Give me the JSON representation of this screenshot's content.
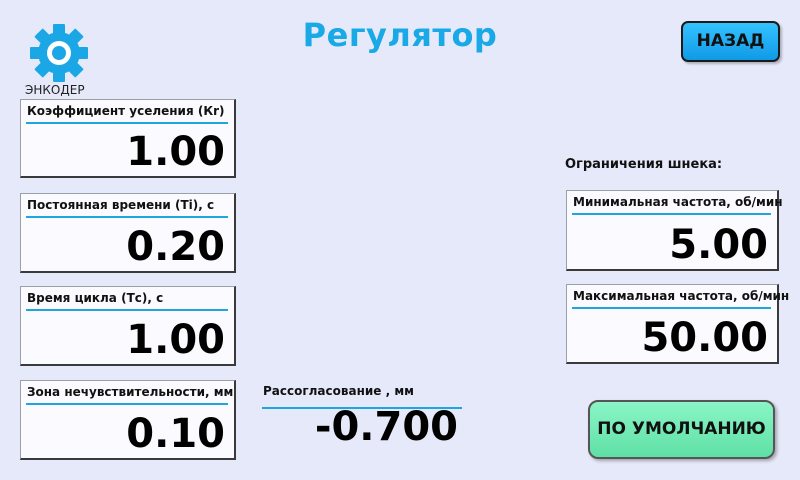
{
  "header": {
    "title": "Регулятор",
    "back_label": "НАЗАД",
    "encoder_label": "ЭНКОДЕР",
    "logo_icon": "gear-icon",
    "accent_color": "#19a9e6"
  },
  "params": [
    {
      "label": "Коэффициент уселения (Кr)",
      "value": "1.00"
    },
    {
      "label": "Постоянная времени (Ti), с",
      "value": "0.20"
    },
    {
      "label": "Время цикла (Тс), с",
      "value": "1.00"
    },
    {
      "label": "Зона нечувствительности, мм",
      "value": "0.10"
    }
  ],
  "auger": {
    "section_label": "Ограничения шнека:",
    "min": {
      "label": "Минимальная частота, об/мин",
      "value": "5.00"
    },
    "max": {
      "label": "Максимальная частота, об/мин",
      "value": "50.00"
    }
  },
  "mismatch": {
    "label": "Рассогласование , мм",
    "value": "-0.700"
  },
  "defaults_button": {
    "label": "ПО УМОЛЧАНИЮ",
    "color": "#6ee8b0"
  }
}
